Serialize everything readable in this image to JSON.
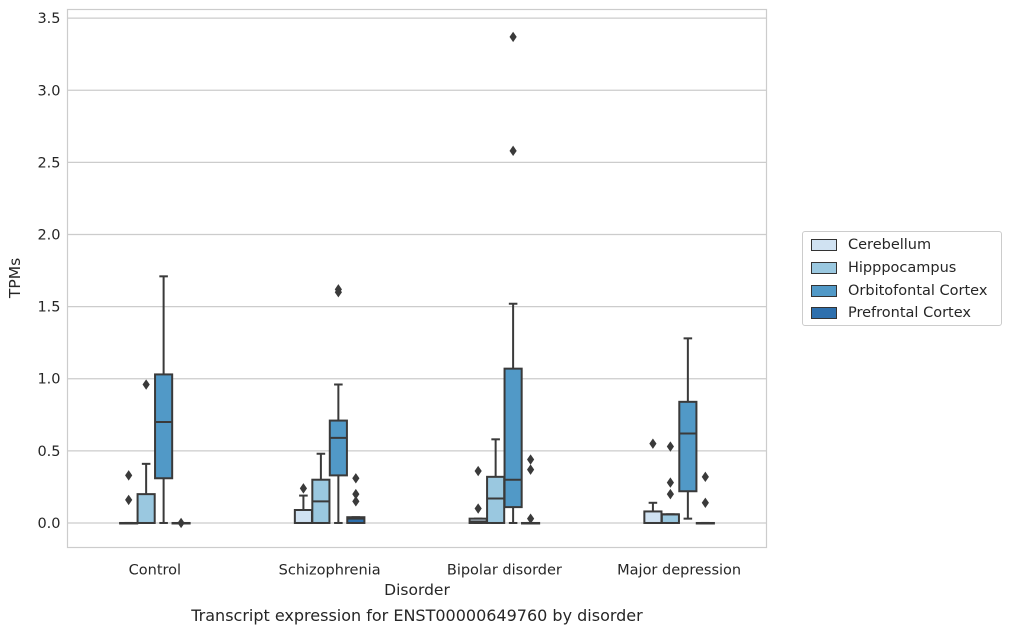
{
  "caption": "Transcript expression for ENST00000649760 by disorder",
  "chart_data": {
    "type": "box",
    "xlabel": "Disorder",
    "ylabel": "TPMs",
    "ylim": [
      -0.17,
      3.56
    ],
    "yticks": [
      0.0,
      0.5,
      1.0,
      1.5,
      2.0,
      2.5,
      3.0,
      3.5
    ],
    "grid": "horizontal",
    "legend_position": "right",
    "categories": [
      "Control",
      "Schizophrenia",
      "Bipolar disorder",
      "Major depression"
    ],
    "series": [
      {
        "name": "Cerebellum",
        "color": "#d0e2f2",
        "boxes": [
          {
            "q1": 0.0,
            "median": 0.0,
            "q3": 0.0,
            "whisker_low": 0.0,
            "whisker_high": 0.0,
            "outliers": [
              0.16,
              0.33
            ]
          },
          {
            "q1": 0.0,
            "median": 0.0,
            "q3": 0.09,
            "whisker_low": 0.0,
            "whisker_high": 0.19,
            "outliers": [
              0.24
            ]
          },
          {
            "q1": 0.0,
            "median": 0.01,
            "q3": 0.03,
            "whisker_low": 0.0,
            "whisker_high": 0.03,
            "outliers": [
              0.1,
              0.36
            ]
          },
          {
            "q1": 0.0,
            "median": 0.0,
            "q3": 0.08,
            "whisker_low": 0.0,
            "whisker_high": 0.14,
            "outliers": [
              0.55
            ]
          }
        ]
      },
      {
        "name": "Hipppocampus",
        "color": "#9ac8e0",
        "boxes": [
          {
            "q1": 0.0,
            "median": 0.0,
            "q3": 0.2,
            "whisker_low": 0.0,
            "whisker_high": 0.41,
            "outliers": [
              0.96
            ]
          },
          {
            "q1": 0.0,
            "median": 0.15,
            "q3": 0.3,
            "whisker_low": 0.0,
            "whisker_high": 0.48,
            "outliers": []
          },
          {
            "q1": 0.0,
            "median": 0.17,
            "q3": 0.32,
            "whisker_low": 0.0,
            "whisker_high": 0.58,
            "outliers": []
          },
          {
            "q1": 0.0,
            "median": 0.06,
            "q3": 0.06,
            "whisker_low": 0.0,
            "whisker_high": 0.06,
            "outliers": [
              0.2,
              0.28,
              0.53
            ]
          }
        ]
      },
      {
        "name": "Orbitofontal Cortex",
        "color": "#5199c7",
        "boxes": [
          {
            "q1": 0.31,
            "median": 0.7,
            "q3": 1.03,
            "whisker_low": 0.0,
            "whisker_high": 1.71,
            "outliers": []
          },
          {
            "q1": 0.33,
            "median": 0.59,
            "q3": 0.71,
            "whisker_low": 0.0,
            "whisker_high": 0.96,
            "outliers": [
              1.6,
              1.62
            ]
          },
          {
            "q1": 0.11,
            "median": 0.3,
            "q3": 1.07,
            "whisker_low": 0.0,
            "whisker_high": 1.52,
            "outliers": [
              2.58,
              3.37
            ]
          },
          {
            "q1": 0.22,
            "median": 0.62,
            "q3": 0.84,
            "whisker_low": 0.03,
            "whisker_high": 1.28,
            "outliers": []
          }
        ]
      },
      {
        "name": "Prefrontal Cortex",
        "color": "#2d6fad",
        "boxes": [
          {
            "q1": 0.0,
            "median": 0.0,
            "q3": 0.0,
            "whisker_low": 0.0,
            "whisker_high": 0.0,
            "outliers": [
              0.0
            ]
          },
          {
            "q1": 0.0,
            "median": 0.03,
            "q3": 0.04,
            "whisker_low": 0.0,
            "whisker_high": 0.04,
            "outliers": [
              0.15,
              0.2,
              0.31
            ]
          },
          {
            "q1": 0.0,
            "median": 0.0,
            "q3": 0.0,
            "whisker_low": 0.0,
            "whisker_high": 0.0,
            "outliers": [
              0.03,
              0.37,
              0.44
            ]
          },
          {
            "q1": 0.0,
            "median": 0.0,
            "q3": 0.0,
            "whisker_low": 0.0,
            "whisker_high": 0.0,
            "outliers": [
              0.14,
              0.32
            ]
          }
        ]
      }
    ]
  }
}
